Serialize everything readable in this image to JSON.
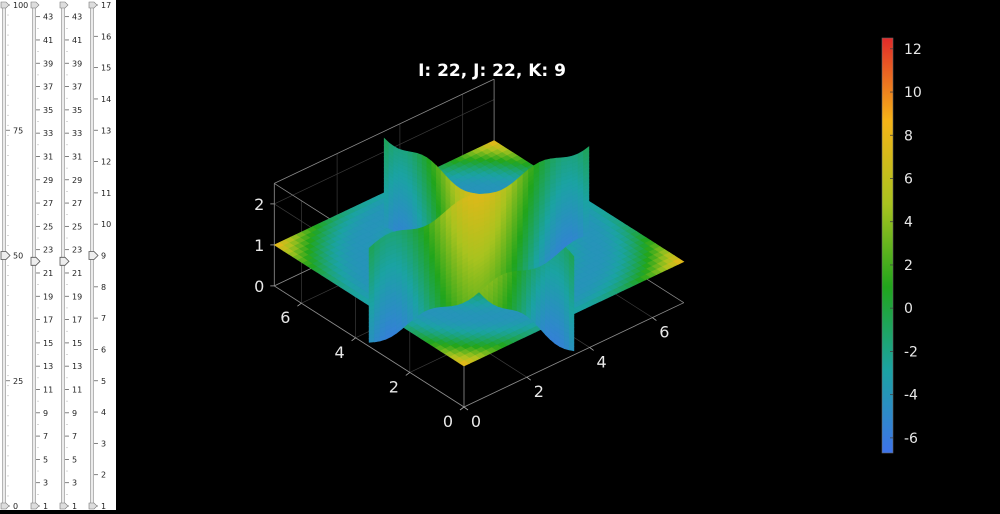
{
  "sliders": [
    {
      "name": "s0",
      "min": 0,
      "max": 100,
      "value": 50,
      "ticks": [
        {
          "v": 0,
          "t": "0"
        },
        {
          "v": 25,
          "t": "25"
        },
        {
          "v": 50,
          "t": "50"
        },
        {
          "v": 75,
          "t": "75"
        },
        {
          "v": 100,
          "t": "100"
        }
      ]
    },
    {
      "name": "s1",
      "min": 1,
      "max": 44,
      "value": 22,
      "ticks": [
        {
          "v": 1,
          "t": "1"
        },
        {
          "v": 3,
          "t": "3"
        },
        {
          "v": 5,
          "t": "5"
        },
        {
          "v": 7,
          "t": "7"
        },
        {
          "v": 9,
          "t": "9"
        },
        {
          "v": 11,
          "t": "11"
        },
        {
          "v": 13,
          "t": "13"
        },
        {
          "v": 15,
          "t": "15"
        },
        {
          "v": 17,
          "t": "17"
        },
        {
          "v": 19,
          "t": "19"
        },
        {
          "v": 21,
          "t": "21"
        },
        {
          "v": 23,
          "t": "23"
        },
        {
          "v": 25,
          "t": "25"
        },
        {
          "v": 27,
          "t": "27"
        },
        {
          "v": 29,
          "t": "29"
        },
        {
          "v": 31,
          "t": "31"
        },
        {
          "v": 33,
          "t": "33"
        },
        {
          "v": 35,
          "t": "35"
        },
        {
          "v": 37,
          "t": "37"
        },
        {
          "v": 39,
          "t": "39"
        },
        {
          "v": 41,
          "t": "41"
        },
        {
          "v": 43,
          "t": "43"
        }
      ]
    },
    {
      "name": "s2",
      "min": 1,
      "max": 44,
      "value": 22,
      "ticks": [
        {
          "v": 1,
          "t": "1"
        },
        {
          "v": 3,
          "t": "3"
        },
        {
          "v": 5,
          "t": "5"
        },
        {
          "v": 7,
          "t": "7"
        },
        {
          "v": 9,
          "t": "9"
        },
        {
          "v": 11,
          "t": "11"
        },
        {
          "v": 13,
          "t": "13"
        },
        {
          "v": 15,
          "t": "15"
        },
        {
          "v": 17,
          "t": "17"
        },
        {
          "v": 19,
          "t": "19"
        },
        {
          "v": 21,
          "t": "21"
        },
        {
          "v": 23,
          "t": "23"
        },
        {
          "v": 25,
          "t": "25"
        },
        {
          "v": 27,
          "t": "27"
        },
        {
          "v": 29,
          "t": "29"
        },
        {
          "v": 31,
          "t": "31"
        },
        {
          "v": 33,
          "t": "33"
        },
        {
          "v": 35,
          "t": "35"
        },
        {
          "v": 37,
          "t": "37"
        },
        {
          "v": 39,
          "t": "39"
        },
        {
          "v": 41,
          "t": "41"
        },
        {
          "v": 43,
          "t": "43"
        }
      ]
    },
    {
      "name": "s3",
      "min": 1,
      "max": 17,
      "value": 9,
      "ticks": [
        {
          "v": 1,
          "t": "1"
        },
        {
          "v": 2,
          "t": "2"
        },
        {
          "v": 3,
          "t": "3"
        },
        {
          "v": 4,
          "t": "4"
        },
        {
          "v": 5,
          "t": "5"
        },
        {
          "v": 6,
          "t": "6"
        },
        {
          "v": 7,
          "t": "7"
        },
        {
          "v": 8,
          "t": "8"
        },
        {
          "v": 9,
          "t": "9"
        },
        {
          "v": 10,
          "t": "10"
        },
        {
          "v": 11,
          "t": "11"
        },
        {
          "v": 12,
          "t": "12"
        },
        {
          "v": 13,
          "t": "13"
        },
        {
          "v": 14,
          "t": "14"
        },
        {
          "v": 15,
          "t": "15"
        },
        {
          "v": 16,
          "t": "16"
        },
        {
          "v": 17,
          "t": "17"
        }
      ]
    }
  ],
  "chart_data": {
    "type": "3d-slice",
    "title": "I: 22, J:  22, K: 9",
    "xlim": [
      0,
      7
    ],
    "ylim": [
      0,
      7
    ],
    "zlim": [
      0,
      2.5
    ],
    "xticks": [
      {
        "v": 0,
        "t": "0"
      },
      {
        "v": 2,
        "t": "2"
      },
      {
        "v": 4,
        "t": "4"
      },
      {
        "v": 6,
        "t": "6"
      }
    ],
    "yticks": [
      {
        "v": 0,
        "t": "0"
      },
      {
        "v": 2,
        "t": "2"
      },
      {
        "v": 4,
        "t": "4"
      },
      {
        "v": 6,
        "t": "6"
      }
    ],
    "zticks": [
      {
        "v": 0,
        "t": "0"
      },
      {
        "v": 1,
        "t": "1"
      },
      {
        "v": 2,
        "t": "2"
      }
    ],
    "slices": {
      "x": 3.5,
      "y": 3.5,
      "z": 1
    },
    "field": "6*cos(r) + r^2/3 - 1, r = distance from (3.5, 3.5)",
    "grid": true,
    "colorbar": {
      "min": -6.7,
      "max": 12.5,
      "ticks": [
        {
          "v": 12,
          "t": "12"
        },
        {
          "v": 10,
          "t": "10"
        },
        {
          "v": 8,
          "t": "8"
        },
        {
          "v": 6,
          "t": "6"
        },
        {
          "v": 4,
          "t": "4"
        },
        {
          "v": 2,
          "t": "2"
        },
        {
          "v": 0,
          "t": "0"
        },
        {
          "v": -2,
          "t": "-2"
        },
        {
          "v": -4,
          "t": "-4"
        },
        {
          "v": -6,
          "t": "-6"
        }
      ],
      "colormap": [
        "#3e73ea",
        "#1ba3a3",
        "#21a51c",
        "#a9c31f",
        "#f6b417",
        "#e12a2a"
      ]
    }
  }
}
